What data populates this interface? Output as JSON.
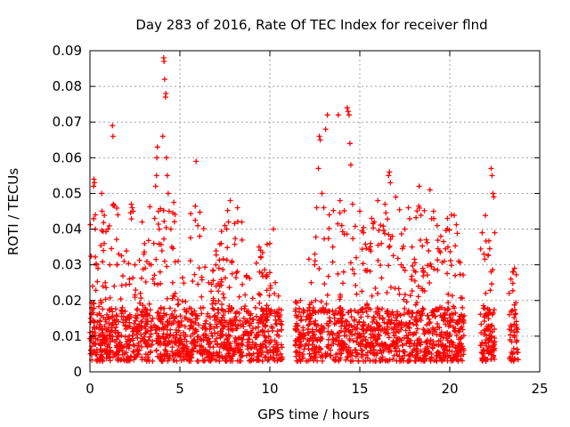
{
  "chart_data": {
    "type": "scatter",
    "title": "Day 283 of 2016, Rate Of TEC Index for receiver flnd",
    "xlabel": "GPS time / hours",
    "ylabel": "ROTI / TECUs",
    "xlim": [
      0,
      25
    ],
    "ylim": [
      0,
      0.09
    ],
    "x_ticks": [
      0,
      5,
      10,
      15,
      20,
      25
    ],
    "y_ticks": [
      0,
      0.01,
      0.02,
      0.03,
      0.04,
      0.05,
      0.06,
      0.07,
      0.08,
      0.09
    ],
    "x_tick_labels": [
      "0",
      "5",
      "10",
      "15",
      "20",
      "25"
    ],
    "y_tick_labels": [
      "0",
      "0.01",
      "0.02",
      "0.03",
      "0.04",
      "0.05",
      "0.06",
      "0.07",
      "0.08",
      "0.09"
    ],
    "grid": true,
    "marker": "+",
    "color": "#ff0000",
    "data_gaps_hours": [
      [
        10.7,
        11.4
      ],
      [
        20.8,
        21.7
      ],
      [
        22.5,
        23.3
      ]
    ],
    "series": [
      {
        "name": "ROTI",
        "points": [
          [
            0.0,
            0.011
          ],
          [
            0.05,
            0.006
          ],
          [
            0.1,
            0.018
          ],
          [
            0.15,
            0.024
          ],
          [
            0.2,
            0.052
          ],
          [
            0.22,
            0.054
          ],
          [
            0.25,
            0.053
          ],
          [
            0.3,
            0.044
          ],
          [
            0.3,
            0.04
          ],
          [
            0.35,
            0.03
          ],
          [
            0.4,
            0.016
          ],
          [
            0.45,
            0.029
          ],
          [
            0.5,
            0.012
          ],
          [
            0.55,
            0.008
          ],
          [
            0.6,
            0.02
          ],
          [
            0.65,
            0.05
          ],
          [
            0.7,
            0.011
          ],
          [
            0.75,
            0.034
          ],
          [
            0.8,
            0.006
          ],
          [
            0.85,
            0.025
          ],
          [
            0.9,
            0.014
          ],
          [
            0.95,
            0.009
          ],
          [
            1.0,
            0.04
          ],
          [
            1.1,
            0.03
          ],
          [
            1.2,
            0.013
          ],
          [
            1.25,
            0.069
          ],
          [
            1.28,
            0.066
          ],
          [
            1.3,
            0.047
          ],
          [
            1.35,
            0.024
          ],
          [
            1.4,
            0.011
          ],
          [
            1.5,
            0.03
          ],
          [
            1.55,
            0.044
          ],
          [
            1.6,
            0.033
          ],
          [
            1.7,
            0.007
          ],
          [
            1.8,
            0.018
          ],
          [
            1.9,
            0.031
          ],
          [
            2.0,
            0.012
          ],
          [
            2.1,
            0.009
          ],
          [
            2.2,
            0.026
          ],
          [
            2.3,
            0.047
          ],
          [
            2.35,
            0.046
          ],
          [
            2.4,
            0.045
          ],
          [
            2.5,
            0.03
          ],
          [
            2.6,
            0.015
          ],
          [
            2.7,
            0.008
          ],
          [
            2.8,
            0.022
          ],
          [
            2.9,
            0.042
          ],
          [
            3.0,
            0.033
          ],
          [
            3.1,
            0.012
          ],
          [
            3.2,
            0.007
          ],
          [
            3.3,
            0.019
          ],
          [
            3.4,
            0.03
          ],
          [
            3.5,
            0.026
          ],
          [
            3.55,
            0.036
          ],
          [
            3.6,
            0.043
          ],
          [
            3.65,
            0.052
          ],
          [
            3.7,
            0.055
          ],
          [
            3.72,
            0.06
          ],
          [
            3.75,
            0.063
          ],
          [
            3.8,
            0.045
          ],
          [
            3.85,
            0.04
          ],
          [
            3.9,
            0.028
          ],
          [
            3.95,
            0.018
          ],
          [
            4.0,
            0.012
          ],
          [
            4.05,
            0.066
          ],
          [
            4.1,
            0.088
          ],
          [
            4.12,
            0.087
          ],
          [
            4.15,
            0.082
          ],
          [
            4.2,
            0.077
          ],
          [
            4.22,
            0.078
          ],
          [
            4.25,
            0.06
          ],
          [
            4.3,
            0.055
          ],
          [
            4.35,
            0.05
          ],
          [
            4.4,
            0.045
          ],
          [
            4.5,
            0.04
          ],
          [
            4.55,
            0.035
          ],
          [
            4.6,
            0.025
          ],
          [
            4.7,
            0.015
          ],
          [
            4.8,
            0.008
          ],
          [
            4.9,
            0.031
          ],
          [
            5.0,
            0.013
          ],
          [
            5.2,
            0.011
          ],
          [
            5.4,
            0.007
          ],
          [
            5.6,
            0.014
          ],
          [
            5.8,
            0.009
          ],
          [
            5.9,
            0.059
          ],
          [
            6.0,
            0.041
          ],
          [
            6.1,
            0.038
          ],
          [
            6.2,
            0.021
          ],
          [
            6.4,
            0.012
          ],
          [
            6.6,
            0.025
          ],
          [
            6.8,
            0.01
          ],
          [
            7.0,
            0.03
          ],
          [
            7.2,
            0.003
          ],
          [
            7.3,
            0.036
          ],
          [
            7.5,
            0.041
          ],
          [
            7.6,
            0.04
          ],
          [
            7.7,
            0.042
          ],
          [
            7.8,
            0.048
          ],
          [
            7.9,
            0.031
          ],
          [
            8.0,
            0.014
          ],
          [
            8.2,
            0.046
          ],
          [
            8.3,
            0.021
          ],
          [
            8.5,
            0.009
          ],
          [
            8.7,
            0.027
          ],
          [
            9.0,
            0.011
          ],
          [
            9.2,
            0.018
          ],
          [
            9.4,
            0.035
          ],
          [
            9.5,
            0.032
          ],
          [
            9.6,
            0.016
          ],
          [
            9.8,
            0.007
          ],
          [
            10.0,
            0.036
          ],
          [
            10.2,
            0.04
          ],
          [
            10.3,
            0.025
          ],
          [
            10.5,
            0.01
          ],
          [
            10.6,
            0.005
          ],
          [
            11.5,
            0.012
          ],
          [
            11.7,
            0.02
          ],
          [
            11.9,
            0.017
          ],
          [
            12.1,
            0.009
          ],
          [
            12.3,
            0.025
          ],
          [
            12.5,
            0.033
          ],
          [
            12.6,
            0.046
          ],
          [
            12.7,
            0.057
          ],
          [
            12.75,
            0.066
          ],
          [
            12.8,
            0.065
          ],
          [
            12.9,
            0.05
          ],
          [
            13.0,
            0.046
          ],
          [
            13.1,
            0.068
          ],
          [
            13.2,
            0.072
          ],
          [
            13.3,
            0.044
          ],
          [
            13.5,
            0.035
          ],
          [
            13.6,
            0.016
          ],
          [
            13.8,
            0.072
          ],
          [
            13.9,
            0.048
          ],
          [
            14.0,
            0.041
          ],
          [
            14.1,
            0.028
          ],
          [
            14.3,
            0.074
          ],
          [
            14.35,
            0.073
          ],
          [
            14.4,
            0.072
          ],
          [
            14.45,
            0.064
          ],
          [
            14.5,
            0.058
          ],
          [
            14.6,
            0.047
          ],
          [
            14.8,
            0.032
          ],
          [
            15.0,
            0.045
          ],
          [
            15.2,
            0.039
          ],
          [
            15.4,
            0.019
          ],
          [
            15.6,
            0.036
          ],
          [
            15.8,
            0.042
          ],
          [
            16.0,
            0.048
          ],
          [
            16.2,
            0.036
          ],
          [
            16.4,
            0.047
          ],
          [
            16.6,
            0.055
          ],
          [
            16.65,
            0.056
          ],
          [
            16.7,
            0.053
          ],
          [
            16.8,
            0.038
          ],
          [
            17.0,
            0.049
          ],
          [
            17.3,
            0.03
          ],
          [
            17.5,
            0.04
          ],
          [
            17.7,
            0.046
          ],
          [
            17.9,
            0.035
          ],
          [
            18.1,
            0.028
          ],
          [
            18.3,
            0.052
          ],
          [
            18.5,
            0.029
          ],
          [
            18.7,
            0.037
          ],
          [
            18.9,
            0.051
          ],
          [
            19.1,
            0.045
          ],
          [
            19.3,
            0.041
          ],
          [
            19.5,
            0.038
          ],
          [
            19.7,
            0.031
          ],
          [
            19.9,
            0.035
          ],
          [
            20.1,
            0.044
          ],
          [
            20.3,
            0.027
          ],
          [
            20.5,
            0.031
          ],
          [
            20.7,
            0.018
          ],
          [
            21.8,
            0.039
          ],
          [
            21.9,
            0.033
          ],
          [
            22.0,
            0.022
          ],
          [
            22.1,
            0.016
          ],
          [
            22.2,
            0.009
          ],
          [
            22.3,
            0.057
          ],
          [
            22.35,
            0.055
          ],
          [
            22.4,
            0.05
          ],
          [
            22.45,
            0.049
          ],
          [
            22.5,
            0.039
          ],
          [
            23.3,
            0.022
          ],
          [
            23.4,
            0.026
          ],
          [
            23.5,
            0.028
          ],
          [
            23.6,
            0.029
          ],
          [
            23.7,
            0.012
          ]
        ]
      }
    ]
  }
}
